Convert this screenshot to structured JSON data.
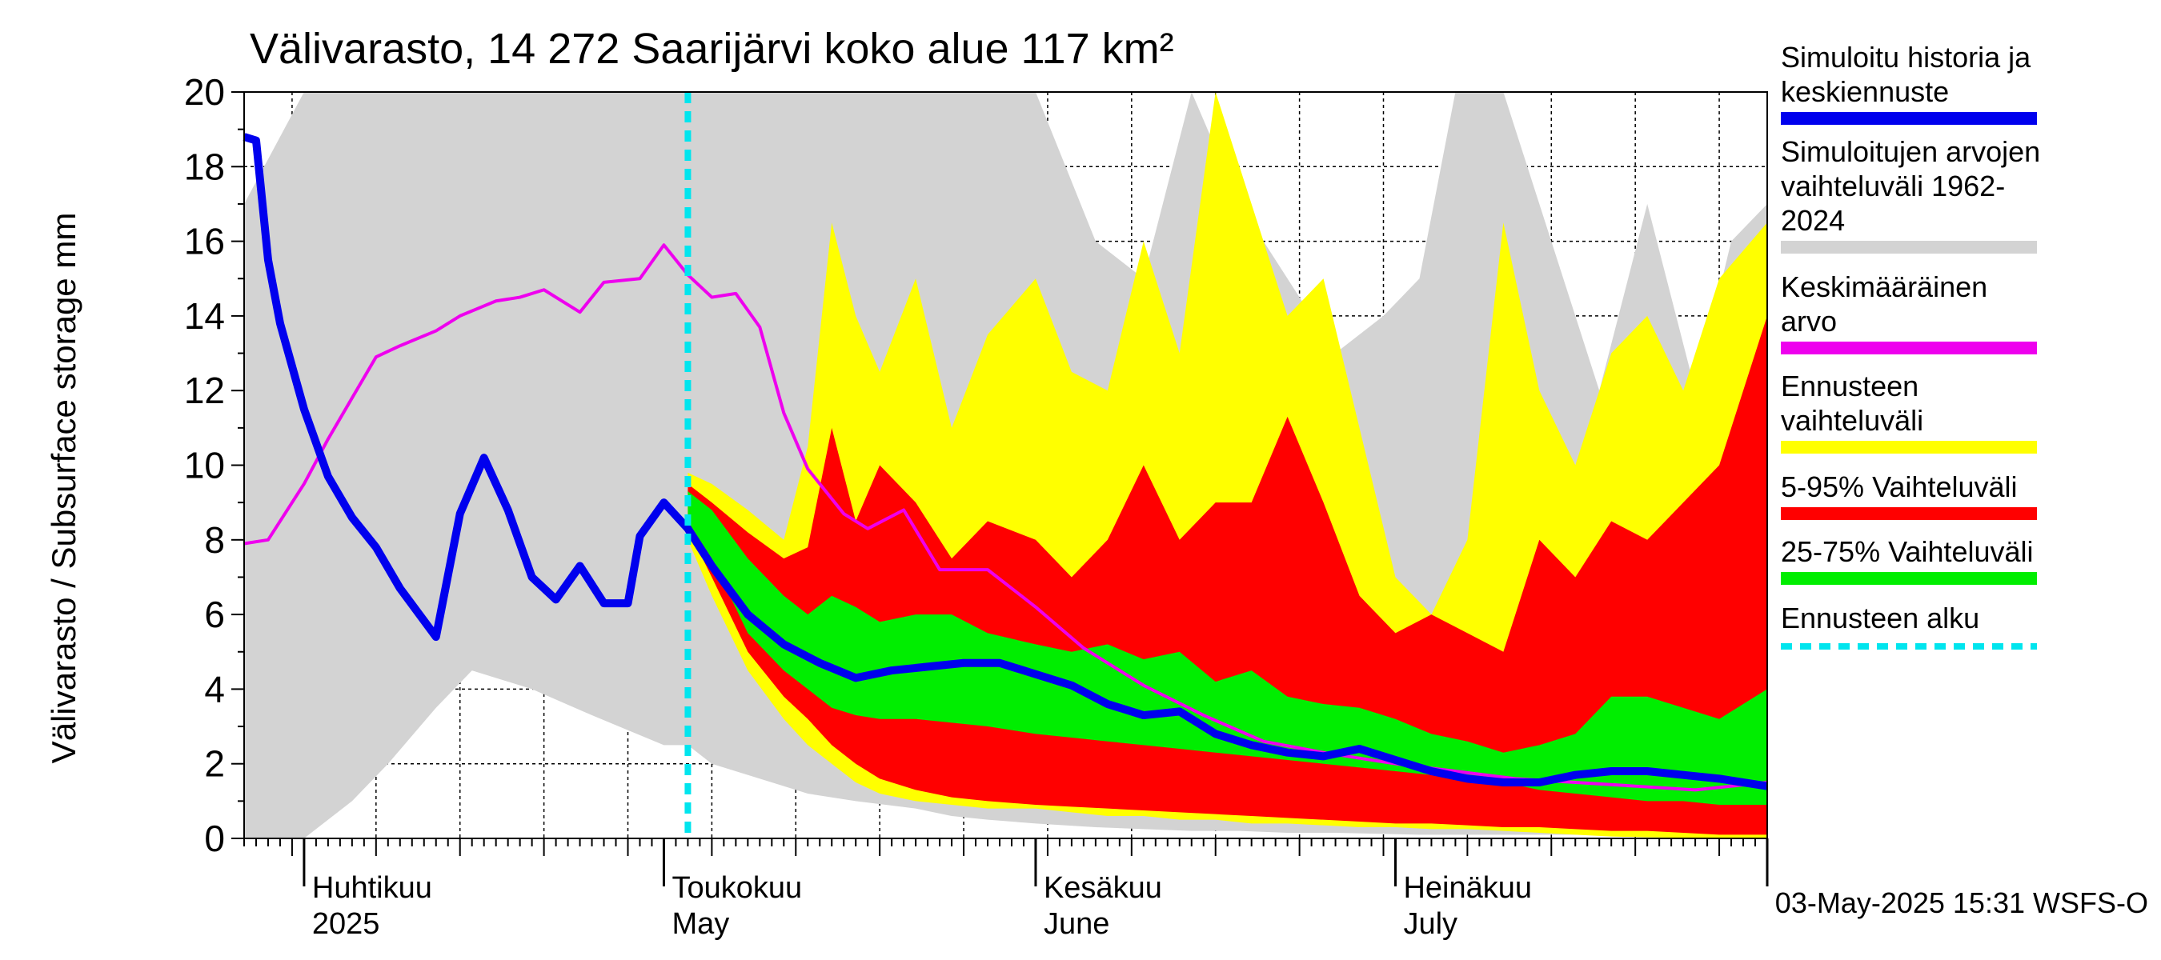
{
  "chart_data": {
    "type": "area",
    "title": "Välivarasto, 14 272 Saarijärvi koko alue 117 km²",
    "ylabel": "Välivarasto / Subsurface storage  mm",
    "ylim": [
      0,
      20
    ],
    "y_ticks": [
      0,
      2,
      4,
      6,
      8,
      10,
      12,
      14,
      16,
      18,
      20
    ],
    "xlim": [
      "2025-03-27",
      "2025-08-01"
    ],
    "forecast_start": "2025-05-03",
    "grid": true,
    "x_month_labels": [
      {
        "line1": "Huhtikuu",
        "line2": "2025",
        "date": "2025-04-01"
      },
      {
        "line1": "Toukokuu",
        "line2": "May",
        "date": "2025-05-01"
      },
      {
        "line1": "Kesäkuu",
        "line2": "June",
        "date": "2025-06-01"
      },
      {
        "line1": "Heinäkuu",
        "line2": "July",
        "date": "2025-07-01"
      }
    ],
    "series": [
      {
        "name": "Simuloitujen arvojen vaihteluväli 1962-2024",
        "kind": "band",
        "color": "#d3d3d3",
        "x": [
          "2025-03-27",
          "2025-04-01",
          "2025-04-05",
          "2025-04-08",
          "2025-04-12",
          "2025-04-15",
          "2025-04-20",
          "2025-04-25",
          "2025-05-01",
          "2025-05-03",
          "2025-05-05",
          "2025-05-10",
          "2025-05-13",
          "2025-05-17",
          "2025-05-22",
          "2025-05-25",
          "2025-05-28",
          "2025-06-01",
          "2025-06-06",
          "2025-06-10",
          "2025-06-14",
          "2025-06-18",
          "2025-06-22",
          "2025-06-26",
          "2025-06-30",
          "2025-07-03",
          "2025-07-06",
          "2025-07-10",
          "2025-07-14",
          "2025-07-18",
          "2025-07-22",
          "2025-07-26",
          "2025-07-29",
          "2025-08-01"
        ],
        "upper": [
          17.0,
          20.0,
          20.0,
          20.0,
          20.0,
          20.0,
          20.0,
          20.0,
          20.0,
          20.0,
          20.0,
          20.0,
          20.0,
          20.0,
          20.0,
          20.0,
          20.0,
          20.0,
          16.0,
          15.0,
          20.0,
          17.0,
          15.0,
          13.0,
          14.0,
          15.0,
          20.0,
          20.0,
          16.0,
          12.0,
          17.0,
          12.0,
          16.0,
          17.0
        ],
        "lower": [
          0.0,
          0.0,
          1.0,
          2.0,
          3.5,
          4.5,
          4.0,
          3.3,
          2.5,
          2.5,
          2.0,
          1.5,
          1.2,
          1.0,
          0.8,
          0.6,
          0.5,
          0.4,
          0.3,
          0.25,
          0.2,
          0.2,
          0.15,
          0.15,
          0.12,
          0.1,
          0.1,
          0.1,
          0.1,
          0.1,
          0.1,
          0.1,
          0.1,
          0.1
        ]
      },
      {
        "name": "Ennusteen vaihteluväli",
        "kind": "band",
        "color": "#ffff00",
        "x": [
          "2025-05-03",
          "2025-05-05",
          "2025-05-08",
          "2025-05-11",
          "2025-05-13",
          "2025-05-15",
          "2025-05-17",
          "2025-05-19",
          "2025-05-22",
          "2025-05-25",
          "2025-05-28",
          "2025-06-01",
          "2025-06-04",
          "2025-06-07",
          "2025-06-10",
          "2025-06-13",
          "2025-06-16",
          "2025-06-19",
          "2025-06-22",
          "2025-06-25",
          "2025-06-28",
          "2025-07-01",
          "2025-07-04",
          "2025-07-07",
          "2025-07-10",
          "2025-07-13",
          "2025-07-16",
          "2025-07-19",
          "2025-07-22",
          "2025-07-25",
          "2025-07-28",
          "2025-08-01"
        ],
        "upper": [
          9.8,
          9.5,
          8.8,
          8.0,
          10.5,
          16.5,
          14.0,
          12.5,
          15.0,
          11.0,
          13.5,
          15.0,
          12.5,
          12.0,
          16.0,
          13.0,
          20.0,
          17.0,
          14.0,
          15.0,
          11.0,
          7.0,
          6.0,
          8.0,
          16.5,
          12.0,
          10.0,
          13.0,
          14.0,
          12.0,
          15.0,
          16.5
        ],
        "lower": [
          8.0,
          6.5,
          4.5,
          3.2,
          2.5,
          2.0,
          1.5,
          1.2,
          1.0,
          0.9,
          0.8,
          0.8,
          0.7,
          0.6,
          0.6,
          0.5,
          0.5,
          0.4,
          0.4,
          0.35,
          0.3,
          0.3,
          0.25,
          0.25,
          0.2,
          0.15,
          0.1,
          0.05,
          0.03,
          0.02,
          0.0,
          0.0
        ]
      },
      {
        "name": "5-95% Vaihteluväli",
        "kind": "band",
        "color": "#ff0000",
        "x": [
          "2025-05-03",
          "2025-05-05",
          "2025-05-08",
          "2025-05-11",
          "2025-05-13",
          "2025-05-15",
          "2025-05-17",
          "2025-05-19",
          "2025-05-22",
          "2025-05-25",
          "2025-05-28",
          "2025-06-01",
          "2025-06-04",
          "2025-06-07",
          "2025-06-10",
          "2025-06-13",
          "2025-06-16",
          "2025-06-19",
          "2025-06-22",
          "2025-06-25",
          "2025-06-28",
          "2025-07-01",
          "2025-07-04",
          "2025-07-07",
          "2025-07-10",
          "2025-07-13",
          "2025-07-16",
          "2025-07-19",
          "2025-07-22",
          "2025-07-25",
          "2025-07-28",
          "2025-08-01"
        ],
        "upper": [
          9.5,
          9.0,
          8.2,
          7.5,
          7.8,
          11.0,
          8.5,
          10.0,
          9.0,
          7.5,
          8.5,
          8.0,
          7.0,
          8.0,
          10.0,
          8.0,
          9.0,
          9.0,
          11.3,
          9.0,
          6.5,
          5.5,
          6.0,
          5.5,
          5.0,
          8.0,
          7.0,
          8.5,
          8.0,
          9.0,
          10.0,
          14.0
        ],
        "lower": [
          8.3,
          7.0,
          5.0,
          3.8,
          3.2,
          2.5,
          2.0,
          1.6,
          1.3,
          1.1,
          1.0,
          0.9,
          0.85,
          0.8,
          0.75,
          0.7,
          0.65,
          0.6,
          0.55,
          0.5,
          0.45,
          0.4,
          0.4,
          0.35,
          0.3,
          0.3,
          0.25,
          0.2,
          0.2,
          0.15,
          0.1,
          0.1
        ]
      },
      {
        "name": "25-75% Vaihteluväli",
        "kind": "band",
        "color": "#00ee00",
        "x": [
          "2025-05-03",
          "2025-05-05",
          "2025-05-08",
          "2025-05-11",
          "2025-05-13",
          "2025-05-15",
          "2025-05-17",
          "2025-05-19",
          "2025-05-22",
          "2025-05-25",
          "2025-05-28",
          "2025-06-01",
          "2025-06-04",
          "2025-06-07",
          "2025-06-10",
          "2025-06-13",
          "2025-06-16",
          "2025-06-19",
          "2025-06-22",
          "2025-06-25",
          "2025-06-28",
          "2025-07-01",
          "2025-07-04",
          "2025-07-07",
          "2025-07-10",
          "2025-07-13",
          "2025-07-16",
          "2025-07-19",
          "2025-07-22",
          "2025-07-25",
          "2025-07-28",
          "2025-08-01"
        ],
        "upper": [
          9.3,
          8.8,
          7.5,
          6.5,
          6.0,
          6.5,
          6.2,
          5.8,
          6.0,
          6.0,
          5.5,
          5.2,
          5.0,
          5.2,
          4.8,
          5.0,
          4.2,
          4.5,
          3.8,
          3.6,
          3.5,
          3.2,
          2.8,
          2.6,
          2.3,
          2.5,
          2.8,
          3.8,
          3.8,
          3.5,
          3.2,
          4.0
        ],
        "lower": [
          8.5,
          7.5,
          5.5,
          4.5,
          4.0,
          3.5,
          3.3,
          3.2,
          3.2,
          3.1,
          3.0,
          2.8,
          2.7,
          2.6,
          2.5,
          2.4,
          2.3,
          2.2,
          2.1,
          2.0,
          1.9,
          1.8,
          1.7,
          1.6,
          1.5,
          1.3,
          1.2,
          1.1,
          1.0,
          1.0,
          0.9,
          0.9
        ]
      },
      {
        "name": "Keskimääräinen arvo",
        "kind": "line",
        "color": "#ee00ee",
        "x": [
          "2025-03-27",
          "2025-03-29",
          "2025-04-01",
          "2025-04-03",
          "2025-04-05",
          "2025-04-07",
          "2025-04-09",
          "2025-04-12",
          "2025-04-14",
          "2025-04-17",
          "2025-04-19",
          "2025-04-21",
          "2025-04-24",
          "2025-04-26",
          "2025-04-29",
          "2025-05-01",
          "2025-05-03",
          "2025-05-05",
          "2025-05-07",
          "2025-05-09",
          "2025-05-11",
          "2025-05-13",
          "2025-05-16",
          "2025-05-18",
          "2025-05-21",
          "2025-05-24",
          "2025-05-28",
          "2025-06-01",
          "2025-06-05",
          "2025-06-10",
          "2025-06-15",
          "2025-06-20",
          "2025-06-25",
          "2025-07-01",
          "2025-07-06",
          "2025-07-11",
          "2025-07-16",
          "2025-07-21",
          "2025-07-26",
          "2025-08-01"
        ],
        "values": [
          7.9,
          8.0,
          9.5,
          10.7,
          11.8,
          12.9,
          13.2,
          13.6,
          14.0,
          14.4,
          14.5,
          14.7,
          14.1,
          14.9,
          15.0,
          15.9,
          15.1,
          14.5,
          14.6,
          13.7,
          11.4,
          9.9,
          8.7,
          8.3,
          8.8,
          7.2,
          7.2,
          6.2,
          5.1,
          4.1,
          3.3,
          2.6,
          2.3,
          2.0,
          1.8,
          1.6,
          1.5,
          1.4,
          1.3,
          1.5
        ]
      },
      {
        "name": "Simuloitu historia ja keskiennuste",
        "kind": "line",
        "color": "#0000ee",
        "x": [
          "2025-03-27",
          "2025-03-28",
          "2025-03-29",
          "2025-03-30",
          "2025-04-01",
          "2025-04-03",
          "2025-04-05",
          "2025-04-07",
          "2025-04-09",
          "2025-04-12",
          "2025-04-14",
          "2025-04-16",
          "2025-04-18",
          "2025-04-20",
          "2025-04-22",
          "2025-04-24",
          "2025-04-26",
          "2025-04-28",
          "2025-04-29",
          "2025-05-01",
          "2025-05-03",
          "2025-05-05",
          "2025-05-08",
          "2025-05-11",
          "2025-05-14",
          "2025-05-17",
          "2025-05-20",
          "2025-05-23",
          "2025-05-26",
          "2025-05-29",
          "2025-06-01",
          "2025-06-04",
          "2025-06-07",
          "2025-06-10",
          "2025-06-13",
          "2025-06-16",
          "2025-06-19",
          "2025-06-22",
          "2025-06-25",
          "2025-06-28",
          "2025-07-01",
          "2025-07-04",
          "2025-07-07",
          "2025-07-10",
          "2025-07-13",
          "2025-07-16",
          "2025-07-19",
          "2025-07-22",
          "2025-07-25",
          "2025-07-28",
          "2025-08-01"
        ],
        "values": [
          18.8,
          18.7,
          15.5,
          13.8,
          11.5,
          9.7,
          8.6,
          7.8,
          6.7,
          5.4,
          8.7,
          10.2,
          8.8,
          7.0,
          6.4,
          7.3,
          6.3,
          6.3,
          8.1,
          9.0,
          8.3,
          7.3,
          6.0,
          5.2,
          4.7,
          4.3,
          4.5,
          4.6,
          4.7,
          4.7,
          4.4,
          4.1,
          3.6,
          3.3,
          3.4,
          2.8,
          2.5,
          2.3,
          2.2,
          2.4,
          2.1,
          1.8,
          1.6,
          1.5,
          1.5,
          1.7,
          1.8,
          1.8,
          1.7,
          1.6,
          1.4
        ]
      },
      {
        "name": "Ennusteen alku",
        "kind": "vline",
        "color": "#00e5ee",
        "x": "2025-05-03"
      }
    ]
  },
  "legend": [
    {
      "label": "Simuloitu historia ja\nkeskiennuste",
      "color": "#0000ee",
      "style": "solid"
    },
    {
      "label": "Simuloitujen arvojen\nvaihteluväli 1962-2024",
      "color": "#d3d3d3",
      "style": "solid"
    },
    {
      "label": "Keskimääräinen arvo",
      "color": "#ee00ee",
      "style": "solid"
    },
    {
      "label": "Ennusteen vaihteluväli",
      "color": "#ffff00",
      "style": "solid"
    },
    {
      "label": "5-95% Vaihteluväli",
      "color": "#ff0000",
      "style": "solid"
    },
    {
      "label": "25-75% Vaihteluväli",
      "color": "#00ee00",
      "style": "solid"
    },
    {
      "label": "Ennusteen alku",
      "color": "#00e5ee",
      "style": "dashed"
    }
  ],
  "timestamp": "03-May-2025 15:31 WSFS-O"
}
